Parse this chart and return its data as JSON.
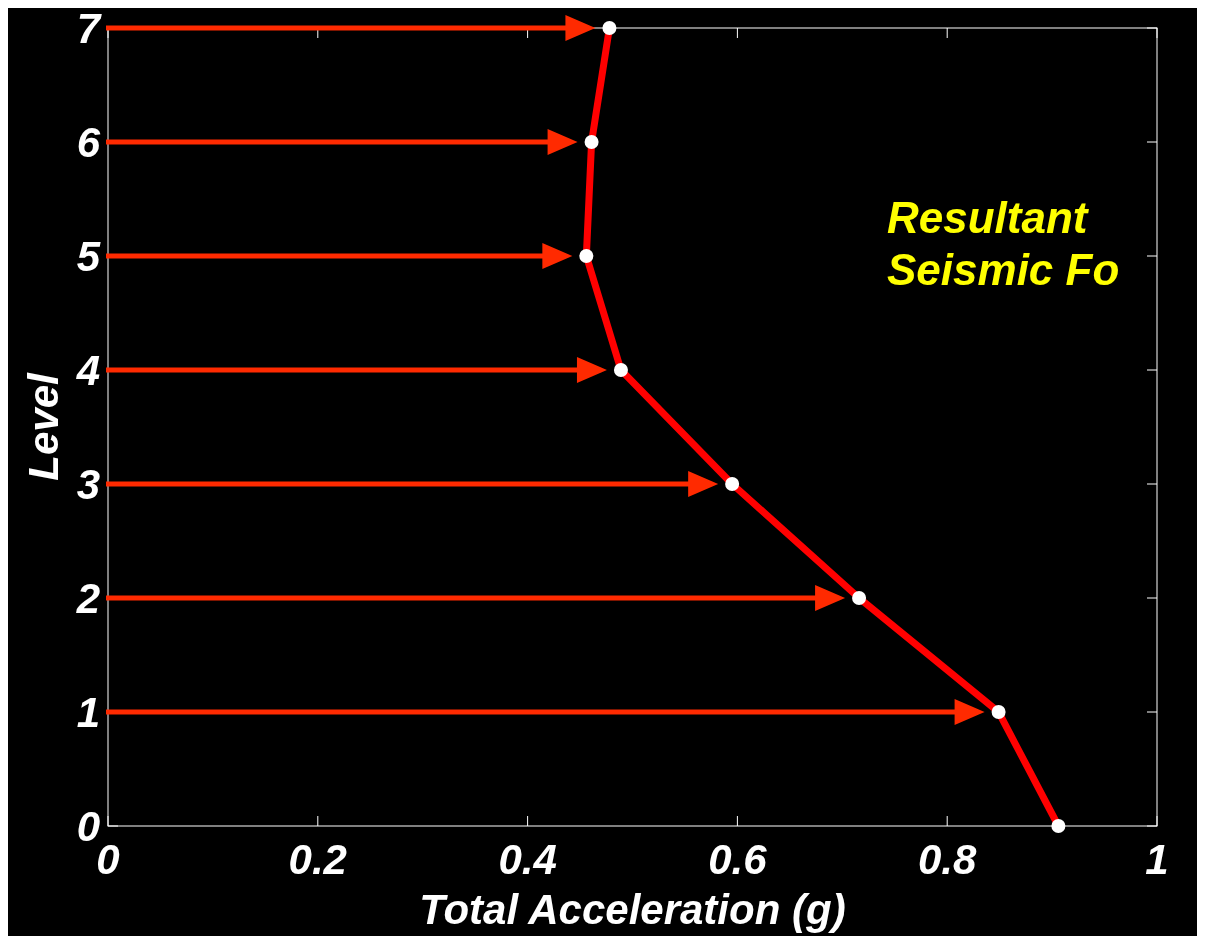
{
  "chart_data": {
    "type": "line",
    "xlabel": "Total Acceleration (g)",
    "ylabel": "Level",
    "annotations": [
      "Resultant Seismic Fo"
    ],
    "series": [
      {
        "color": "#ff0000",
        "x": [
          0.906,
          0.849,
          0.716,
          0.595,
          0.489,
          0.456,
          0.461,
          0.478
        ],
        "values": [
          0,
          1,
          2,
          3,
          4,
          5,
          6,
          7
        ]
      }
    ],
    "xlim": [
      0,
      1
    ],
    "xticks": [
      0,
      0.2,
      0.4,
      0.6,
      0.8,
      1
    ],
    "ylim": [
      0,
      7
    ],
    "yticks": [
      0,
      1,
      2,
      3,
      4,
      5,
      6,
      7
    ],
    "grid": false,
    "marker": "circle",
    "line_style": "solid"
  }
}
